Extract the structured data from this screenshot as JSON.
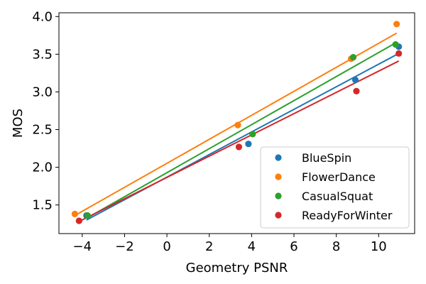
{
  "chart_data": {
    "type": "scatter",
    "xlabel": "Geometry PSNR",
    "ylabel": "MOS",
    "xlim": [
      -5.1,
      11.7
    ],
    "ylim": [
      1.12,
      4.05
    ],
    "xticks": [
      -4,
      -2,
      0,
      2,
      4,
      6,
      8,
      10
    ],
    "yticks": [
      1.5,
      2.0,
      2.5,
      3.0,
      3.5,
      4.0
    ],
    "grid": false,
    "legend_position": "lower-right",
    "series": [
      {
        "name": "BlueSpin",
        "color": "#1f77b4",
        "points": [
          {
            "x": -3.8,
            "y": 1.36
          },
          {
            "x": 3.85,
            "y": 2.31
          },
          {
            "x": 8.9,
            "y": 3.16
          },
          {
            "x": 10.95,
            "y": 3.6
          }
        ],
        "fit": [
          [
            -3.8,
            1.3
          ],
          [
            10.95,
            3.51
          ]
        ]
      },
      {
        "name": "FlowerDance",
        "color": "#ff7f0e",
        "points": [
          {
            "x": -4.35,
            "y": 1.38
          },
          {
            "x": 3.35,
            "y": 2.56
          },
          {
            "x": 8.7,
            "y": 3.44
          },
          {
            "x": 10.85,
            "y": 3.9
          }
        ],
        "fit": [
          [
            -4.35,
            1.36
          ],
          [
            10.85,
            3.78
          ]
        ]
      },
      {
        "name": "CasualSquat",
        "color": "#2ca02c",
        "points": [
          {
            "x": -3.75,
            "y": 1.36
          },
          {
            "x": 4.05,
            "y": 2.44
          },
          {
            "x": 8.8,
            "y": 3.46
          },
          {
            "x": 10.8,
            "y": 3.63
          }
        ],
        "fit": [
          [
            -3.75,
            1.33
          ],
          [
            10.8,
            3.65
          ]
        ]
      },
      {
        "name": "ReadyForWinter",
        "color": "#d62728",
        "points": [
          {
            "x": -4.15,
            "y": 1.29
          },
          {
            "x": 3.4,
            "y": 2.27
          },
          {
            "x": 8.95,
            "y": 3.01
          },
          {
            "x": 10.95,
            "y": 3.51
          }
        ],
        "fit": [
          [
            -4.15,
            1.28
          ],
          [
            10.95,
            3.41
          ]
        ]
      }
    ]
  }
}
